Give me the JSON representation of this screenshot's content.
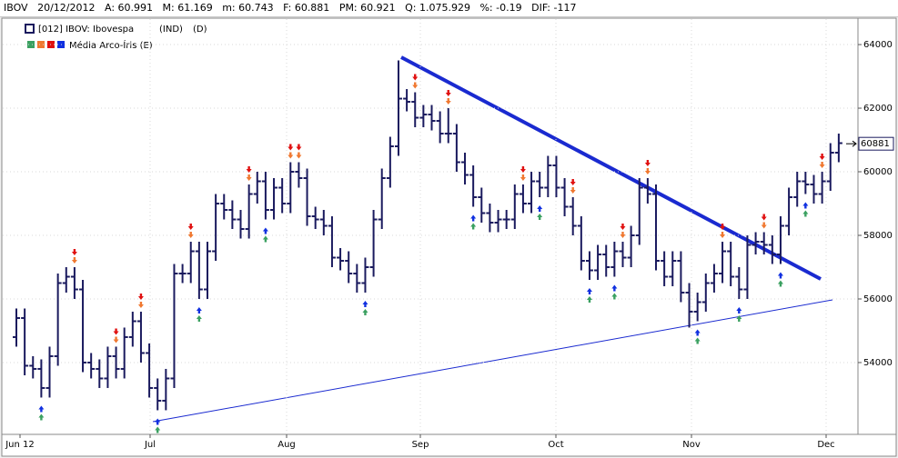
{
  "header": {
    "symbol": "IBOV",
    "date": "20/12/2012",
    "fields": [
      "A: 60.991",
      "M: 61.169",
      "m: 60.743",
      "F: 60.881",
      "PM: 60.921",
      "Q: 1.075.929",
      "%: -0.19",
      "DIF: -117"
    ]
  },
  "chart_data": {
    "type": "ohlc",
    "title": "[012] IBOV: Ibovespa",
    "market": "(IND)",
    "period": "(D)",
    "indicator": "Média Arco-Íris (E)",
    "color": "#1a1a5e",
    "open": [
      54800,
      55400,
      53900,
      53800,
      53200,
      54200,
      56500,
      56700,
      56300,
      54000,
      53800,
      53500,
      54200,
      53800,
      54800,
      55300,
      54300,
      53200,
      52800,
      53500,
      56800,
      56800,
      57500,
      56300,
      57500,
      59000,
      58800,
      58500,
      58200,
      59300,
      59700,
      58800,
      59500,
      59000,
      60000,
      59800,
      58600,
      58500,
      58300,
      57300,
      57200,
      56800,
      56500,
      57000,
      58500,
      59800,
      60800,
      62300,
      62200,
      61700,
      61800,
      61600,
      61200,
      61200,
      60300,
      59900,
      59200,
      58700,
      58400,
      58500,
      58500,
      59300,
      59000,
      59700,
      59500,
      60200,
      59500,
      58900,
      58300,
      57200,
      56900,
      57400,
      57000,
      57500,
      57300,
      58000,
      59500,
      59300,
      57200,
      56700,
      57200,
      56200,
      55600,
      55900,
      56500,
      56800,
      57500,
      56700,
      56300,
      57700,
      57800,
      57700,
      57400,
      58300,
      59200,
      59700,
      59600,
      59300,
      59700,
      60600
    ],
    "high": [
      55700,
      55700,
      54200,
      54100,
      54500,
      56800,
      57000,
      57000,
      56600,
      54300,
      54100,
      54500,
      54500,
      55100,
      55600,
      55600,
      54600,
      53500,
      53800,
      57100,
      57100,
      57800,
      57800,
      57800,
      59300,
      59300,
      59100,
      58800,
      59600,
      60000,
      60000,
      59800,
      59800,
      60300,
      60300,
      60100,
      58900,
      58800,
      58600,
      57600,
      57500,
      57100,
      57300,
      58800,
      60100,
      61100,
      63500,
      62600,
      62500,
      62100,
      62100,
      61900,
      62000,
      61500,
      60600,
      60200,
      59500,
      59000,
      58800,
      58800,
      59600,
      59600,
      60000,
      60000,
      60500,
      60500,
      59800,
      59200,
      58600,
      57500,
      57700,
      57700,
      57800,
      57800,
      58300,
      59800,
      59800,
      59600,
      57500,
      57500,
      57500,
      56500,
      56200,
      56800,
      57100,
      57800,
      57800,
      57000,
      58000,
      58100,
      58100,
      58000,
      58600,
      59500,
      60000,
      60000,
      59900,
      60000,
      60900,
      61200
    ],
    "low": [
      54500,
      53600,
      53500,
      52900,
      52900,
      53900,
      56200,
      56000,
      53700,
      53500,
      53200,
      53200,
      53500,
      53500,
      54500,
      54000,
      52900,
      52500,
      52500,
      53200,
      56500,
      56500,
      56000,
      56000,
      57200,
      58500,
      58200,
      57900,
      57900,
      59000,
      58500,
      58500,
      58700,
      58700,
      59500,
      58300,
      58200,
      58000,
      57000,
      56900,
      56500,
      56200,
      56200,
      56700,
      58200,
      59500,
      60500,
      61900,
      61400,
      61400,
      61300,
      60900,
      60900,
      60000,
      59600,
      58900,
      58400,
      58100,
      58100,
      58200,
      58200,
      58700,
      58700,
      59200,
      59200,
      59200,
      58600,
      58000,
      56900,
      56600,
      56600,
      56700,
      56700,
      57000,
      57000,
      57700,
      59000,
      56900,
      56400,
      56400,
      55900,
      55100,
      55300,
      55600,
      56200,
      56500,
      56400,
      56000,
      56000,
      57400,
      57400,
      57100,
      57100,
      58000,
      58900,
      59300,
      59000,
      59000,
      59400,
      60300
    ],
    "close": [
      55400,
      53900,
      53800,
      53200,
      54200,
      56500,
      56700,
      56300,
      54000,
      53800,
      53500,
      54200,
      53800,
      54800,
      55300,
      54300,
      53200,
      52800,
      53500,
      56800,
      56800,
      57500,
      56300,
      57500,
      59000,
      58800,
      58500,
      58200,
      59300,
      59700,
      58800,
      59500,
      59000,
      60000,
      59800,
      58600,
      58500,
      58300,
      57300,
      57200,
      56800,
      56500,
      57000,
      58500,
      59800,
      60800,
      62300,
      62200,
      61700,
      61800,
      61600,
      61200,
      61200,
      60300,
      59900,
      59200,
      58700,
      58400,
      58500,
      58500,
      59300,
      59000,
      59700,
      59500,
      60200,
      59500,
      58900,
      58300,
      57200,
      56900,
      57400,
      57000,
      57500,
      57300,
      58000,
      59500,
      59300,
      57200,
      56700,
      57200,
      56200,
      55600,
      55900,
      56500,
      56800,
      57500,
      56700,
      56300,
      57700,
      57800,
      57700,
      57400,
      58300,
      59200,
      59700,
      59600,
      59300,
      59700,
      60600,
      60900
    ],
    "last_price": 60881,
    "xlabels": [
      "Jun 12",
      "Jul",
      "Aug",
      "Sep",
      "Oct",
      "Nov",
      "Dec"
    ],
    "ylim": [
      51770,
      64830
    ],
    "yticks": [
      54000,
      56000,
      58000,
      60000,
      62000,
      64000
    ],
    "grid": true
  }
}
